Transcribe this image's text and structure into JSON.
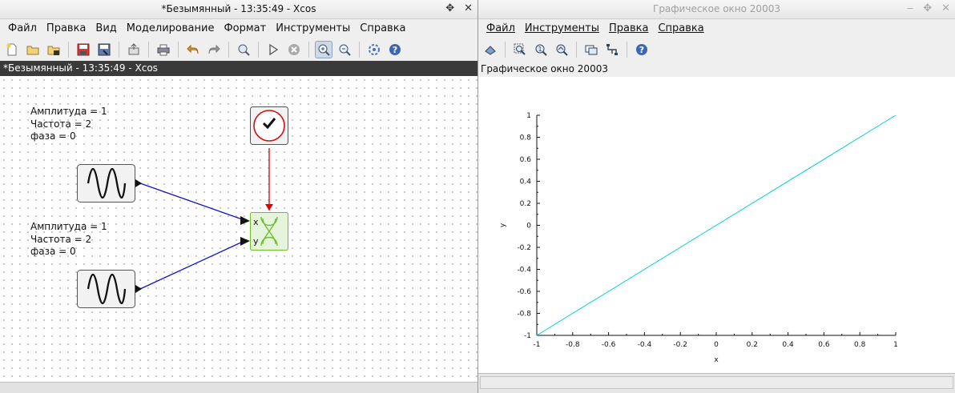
{
  "xcos": {
    "window_title": "*Безымянный - 13:35:49 - Xcos",
    "menu": [
      "Файл",
      "Правка",
      "Вид",
      "Моделирование",
      "Формат",
      "Инструменты",
      "Справка"
    ],
    "doc_tab": "*Безымянный - 13:35:49 - Xcos",
    "toolbar_icons": [
      "new-icon",
      "open-icon",
      "open-in-scilab-icon",
      "save-icon",
      "save-as-icon",
      "export-icon",
      "print-icon",
      "undo-icon",
      "redo-icon",
      "fit-diagram-icon",
      "start-icon",
      "stop-icon",
      "zoom-in-icon",
      "zoom-out-icon",
      "xcos-demos-icon",
      "help-icon"
    ],
    "diagram": {
      "gen1_params": [
        "Амплитуда = 1",
        "Частота = 2",
        "фаза = 0"
      ],
      "gen2_params": [
        "Амплитуда = 1",
        "Частота = 2",
        "фаза = 0"
      ],
      "scope_ports": [
        "x",
        "y"
      ],
      "colors": {
        "data_link": "#1010cc",
        "event_link": "#e00000",
        "scope_green": "#6cc030"
      }
    }
  },
  "graphic": {
    "window_title": "Графическое окно 20003",
    "menu": [
      "Файл",
      "Инструменты",
      "Правка",
      "Справка"
    ],
    "caption": "Графическое окно 20003",
    "toolbar_icons": [
      "rotate-icon",
      "zoom-icon",
      "unzoom-icon",
      "zoom-area-icon",
      "datatip-icon",
      "edit-axes-icon",
      "help-icon"
    ]
  },
  "chart_data": {
    "type": "line",
    "xlabel": "x",
    "ylabel": "y",
    "xlim": [
      -1,
      1
    ],
    "ylim": [
      -1,
      1
    ],
    "xticks": [
      "-1",
      "-0.8",
      "-0.6",
      "-0.4",
      "-0.2",
      "0",
      "0.2",
      "0.4",
      "0.6",
      "0.8",
      "1"
    ],
    "yticks": [
      "-1",
      "-0.8",
      "-0.6",
      "-0.4",
      "-0.2",
      "0",
      "0.2",
      "0.4",
      "0.6",
      "0.8",
      "1"
    ],
    "grid": false,
    "series": [
      {
        "color": "#00d0e0",
        "x": [
          -1,
          1
        ],
        "y": [
          -1,
          1
        ]
      }
    ]
  }
}
